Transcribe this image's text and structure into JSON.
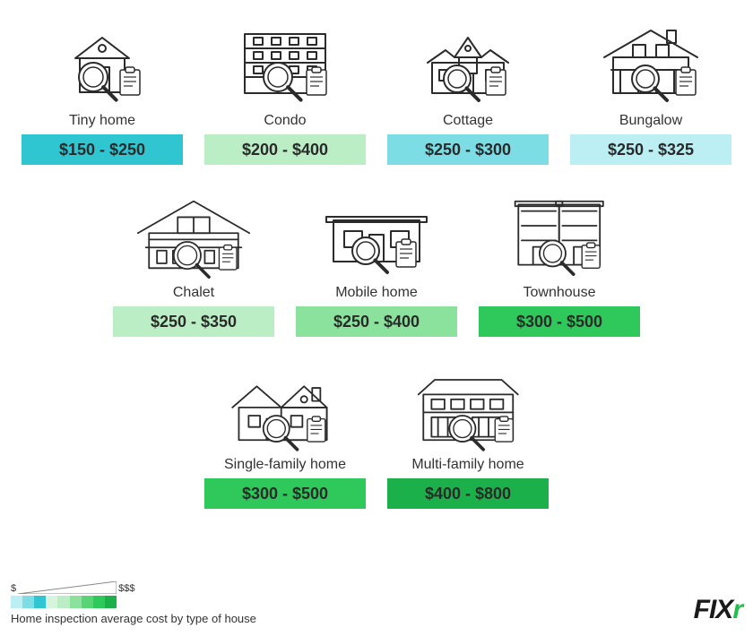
{
  "type": "infographic",
  "background_color": "#ffffff",
  "icon_stroke": "#2b2b2b",
  "label_fontsize": 16,
  "price_fontsize": 18,
  "price_text_color": "#2a2a2a",
  "items": [
    {
      "id": "tiny-home",
      "label": "Tiny home",
      "price": "$150 - $250",
      "bg": "#2fc6d1",
      "row": 0
    },
    {
      "id": "condo",
      "label": "Condo",
      "price": "$200 - $400",
      "bg": "#bceec6",
      "row": 0
    },
    {
      "id": "cottage",
      "label": "Cottage",
      "price": "$250 - $300",
      "bg": "#7cdde5",
      "row": 0
    },
    {
      "id": "bungalow",
      "label": "Bungalow",
      "price": "$250 - $325",
      "bg": "#bbeff3",
      "row": 0
    },
    {
      "id": "chalet",
      "label": "Chalet",
      "price": "$250 - $350",
      "bg": "#bceec6",
      "row": 1
    },
    {
      "id": "mobile-home",
      "label": "Mobile home",
      "price": "$250 - $400",
      "bg": "#8ae29d",
      "row": 1
    },
    {
      "id": "townhouse",
      "label": "Townhouse",
      "price": "$300 - $500",
      "bg": "#2fc85a",
      "row": 1
    },
    {
      "id": "single-family",
      "label": "Single-family home",
      "price": "$300 - $500",
      "bg": "#2fc85a",
      "row": 2
    },
    {
      "id": "multi-family",
      "label": "Multi-family home",
      "price": "$400 - $800",
      "bg": "#1cb04a",
      "row": 2
    }
  ],
  "legend": {
    "low_label": "$",
    "high_label": "$$$",
    "caption": "Home inspection average cost by type of house",
    "swatch_colors": [
      "#bbeff3",
      "#7cdde5",
      "#2fc6d1",
      "#d7f4dd",
      "#bceec6",
      "#8ae29d",
      "#58d477",
      "#2fc85a",
      "#1cb04a"
    ]
  },
  "brand": {
    "text_main": "FIX",
    "text_accent": "r",
    "accent_color": "#1cc24a"
  }
}
